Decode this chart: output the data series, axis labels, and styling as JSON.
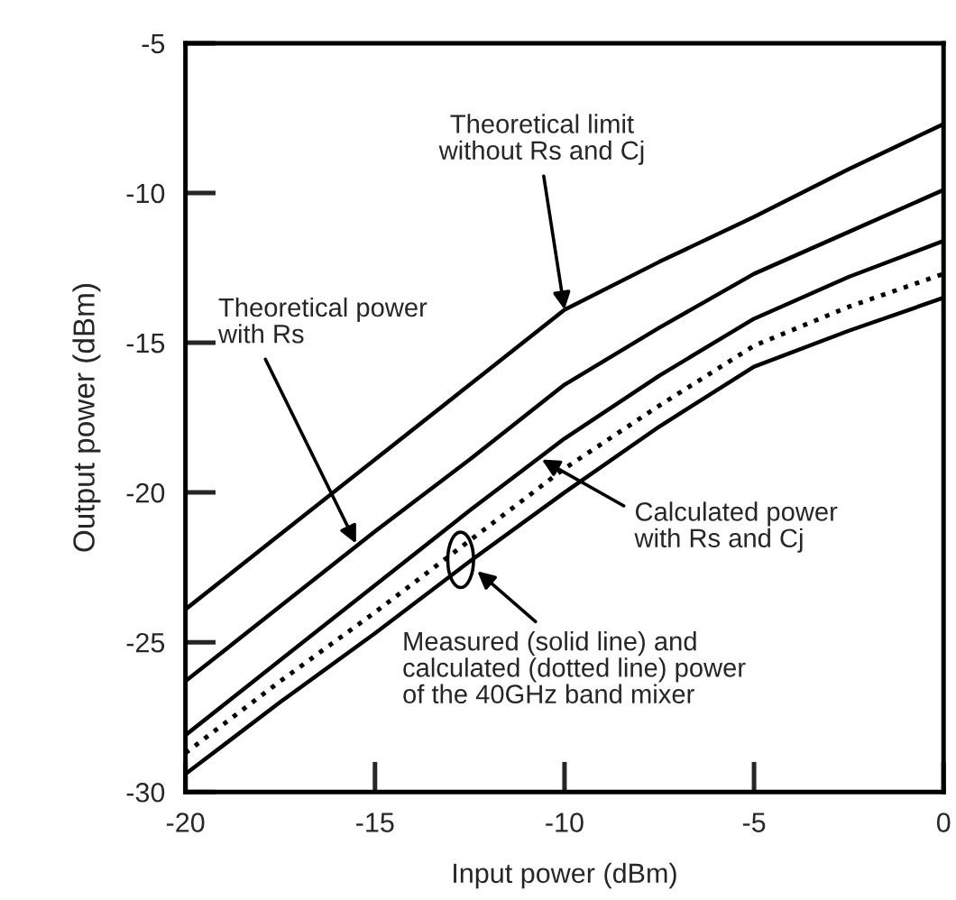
{
  "chart_data": {
    "type": "line",
    "xlabel": "Input power (dBm)",
    "ylabel": "Output power (dBm)",
    "x": [
      -20,
      -17.5,
      -15,
      -12.5,
      -10,
      -7.5,
      -5,
      -2.5,
      0
    ],
    "series": [
      {
        "color": "#000000",
        "line_style": "solid",
        "values": [
          -23.9,
          -21.4,
          -18.9,
          -16.4,
          -13.9,
          -12.3,
          -10.8,
          -9.2,
          -7.7
        ]
      },
      {
        "color": "#000000",
        "line_style": "solid",
        "values": [
          -26.3,
          -23.8,
          -21.3,
          -18.9,
          -16.4,
          -14.5,
          -12.7,
          -11.3,
          -9.9
        ]
      },
      {
        "color": "#000000",
        "line_style": "solid",
        "values": [
          -28.1,
          -25.6,
          -23.1,
          -20.6,
          -18.2,
          -16.1,
          -14.2,
          -12.8,
          -11.6
        ]
      },
      {
        "color": "#000000",
        "line_style": "dotted",
        "values": [
          -28.7,
          -26.3,
          -24.0,
          -21.6,
          -19.2,
          -17.1,
          -15.1,
          -13.8,
          -12.7
        ]
      },
      {
        "color": "#000000",
        "line_style": "solid",
        "values": [
          -29.4,
          -27.0,
          -24.7,
          -22.3,
          -20.0,
          -17.8,
          -15.8,
          -14.6,
          -13.5
        ]
      }
    ],
    "xlim": [
      -20,
      0
    ],
    "xticks": [
      -20,
      -15,
      -10,
      -5,
      0
    ],
    "ylim": [
      -30,
      -5
    ],
    "yticks": [
      -30,
      -25,
      -20,
      -15,
      -10,
      -5
    ],
    "grid": false,
    "legend": false,
    "marker": "none",
    "annotations": [
      {
        "text": "Theoretical limit\nwithout Rs and Cj",
        "x": -10,
        "y": -13.9
      },
      {
        "text": "Theoretical power\nwith Rs",
        "x": -15.5,
        "y": -21.7
      },
      {
        "text": "Calculated power\nwith Rs and Cj",
        "x": -10.6,
        "y": -18.9
      },
      "Measured (solid line) and\ncalculated (dotted line) power\nof the 40GHz band mixer"
    ]
  }
}
